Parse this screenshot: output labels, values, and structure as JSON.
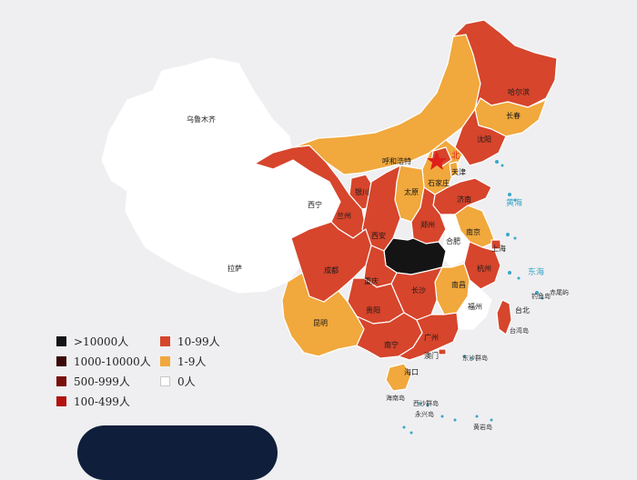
{
  "legend": {
    "items": [
      {
        "label": ">10000人",
        "color": "#141414"
      },
      {
        "label": "1000-10000人",
        "color": "#3b0a08"
      },
      {
        "label": "500-999人",
        "color": "#7a100c"
      },
      {
        "label": "100-499人",
        "color": "#b3130f"
      },
      {
        "label": "10-99人",
        "color": "#d6452c"
      },
      {
        "label": "1-9人",
        "color": "#f1a83c"
      },
      {
        "label": "0人",
        "color": "#ffffff"
      }
    ]
  },
  "map": {
    "cities": {
      "urumqi": "乌鲁木齐",
      "lhasa": "拉萨",
      "xining": "西宁",
      "lanzhou": "兰州",
      "yinchuan": "银川",
      "hohhot": "呼和浩特",
      "harbin": "哈尔滨",
      "changchun": "长春",
      "shenyang": "沈阳",
      "beijing": "北",
      "tianjin": "天津",
      "shijiazhuang": "石家庄",
      "taiyuan": "太原",
      "jinan": "济南",
      "zhengzhou": "郑州",
      "xian": "西安",
      "hefei": "合肥",
      "nanjing": "南京",
      "shanghai": "上海",
      "hangzhou": "杭州",
      "chengdu": "成都",
      "chongqing": "重庆",
      "changsha": "长沙",
      "nanchang": "南昌",
      "fuzhou": "福州",
      "guiyang": "贵阳",
      "kunming": "昆明",
      "nanning": "南宁",
      "guangzhou": "广州",
      "macau": "澳门",
      "haikou": "海口",
      "taipei": "台北",
      "taiwan": "台湾岛"
    },
    "seas": {
      "yellow_sea": "黄海",
      "east_sea": "东海"
    },
    "islands": {
      "diaoyu": "钓鱼岛",
      "chiwei": "赤尾屿",
      "dongsha": "东沙群岛",
      "hainan": "海南岛",
      "xisha": "西沙群岛",
      "yongxing": "永兴岛",
      "huangyan": "黄岩岛"
    }
  }
}
